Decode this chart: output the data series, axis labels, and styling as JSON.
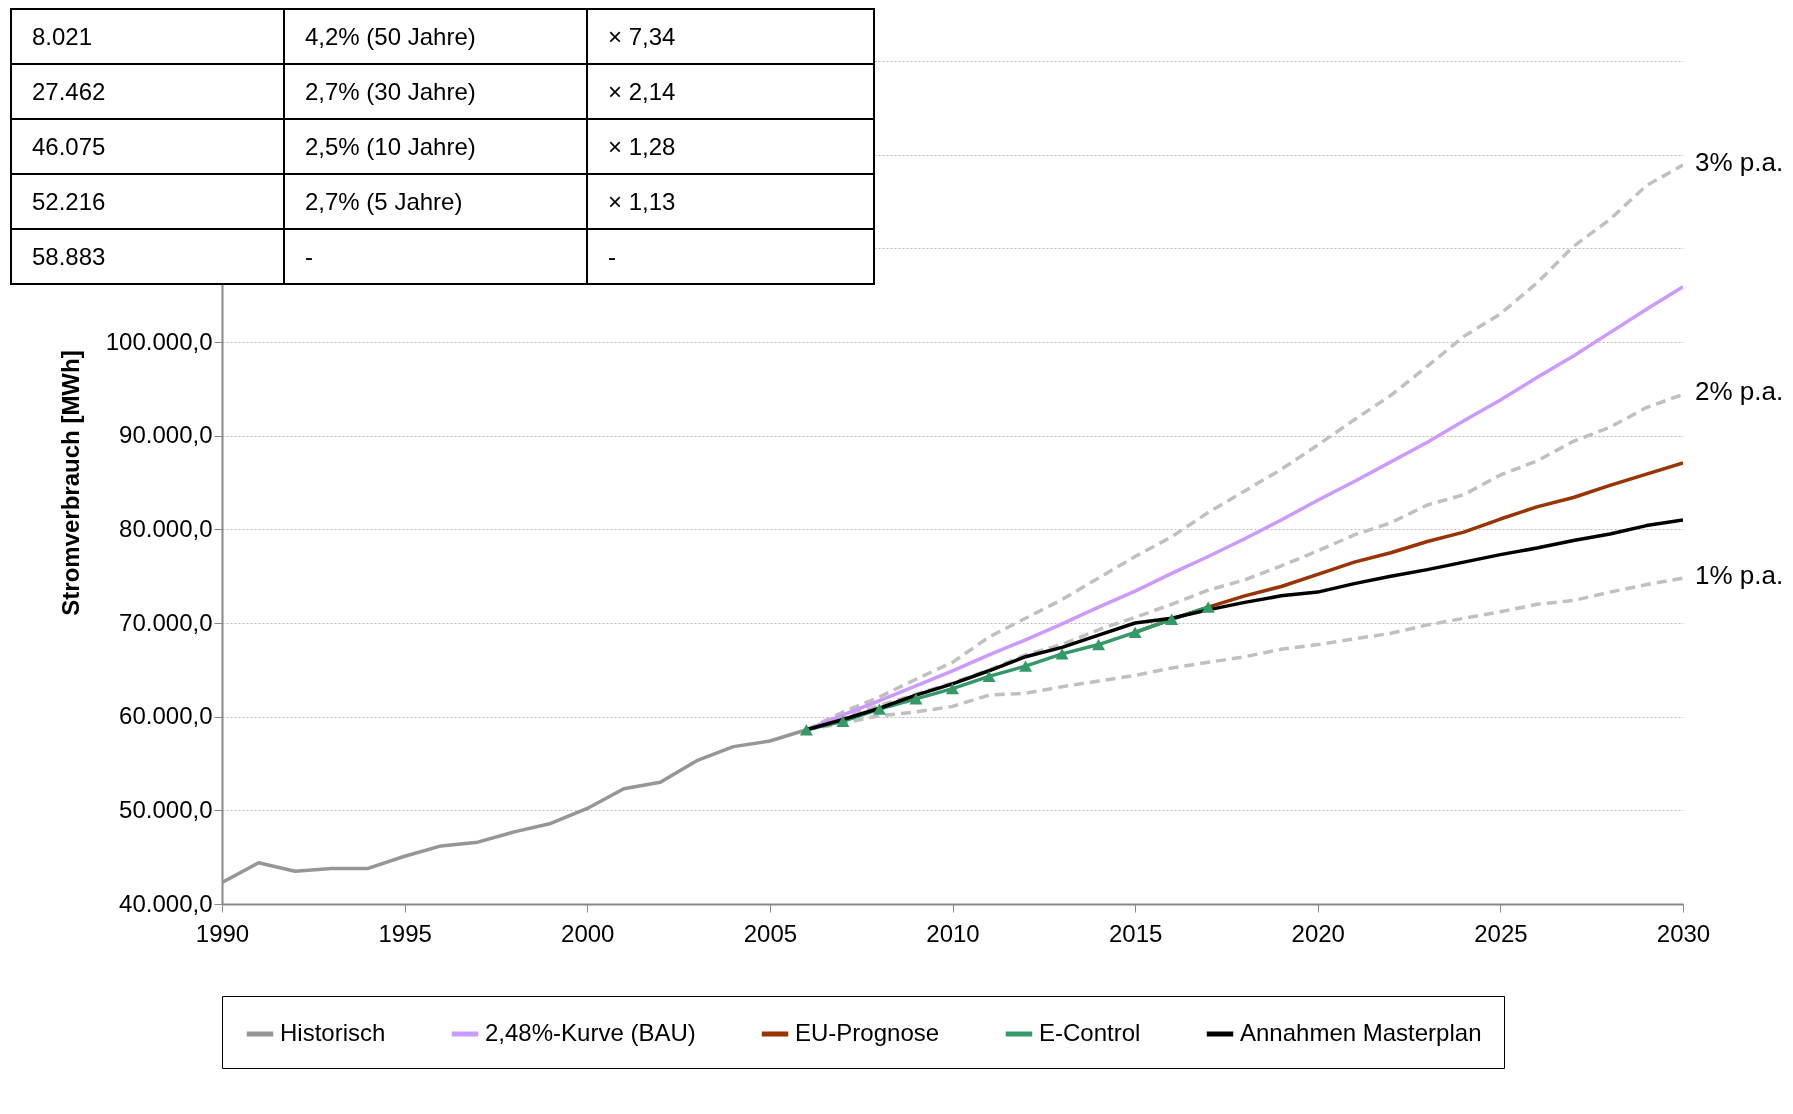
{
  "chart_data": {
    "type": "line",
    "ylabel": "Stromverbrauch [MWh]",
    "xlim": [
      1990,
      2030
    ],
    "xticks": [
      1990,
      1995,
      2000,
      2005,
      2010,
      2015,
      2020,
      2025,
      2030
    ],
    "ylim": [
      40000,
      130000
    ],
    "yticks": [
      {
        "value": 40000,
        "label": "40.000,0"
      },
      {
        "value": 50000,
        "label": "50.000,0"
      },
      {
        "value": 60000,
        "label": "60.000,0"
      },
      {
        "value": 70000,
        "label": "70.000,0"
      },
      {
        "value": 80000,
        "label": "80.000,0"
      },
      {
        "value": 90000,
        "label": "90.000,0"
      },
      {
        "value": 100000,
        "label": "100.000,0"
      },
      {
        "value": 110000,
        "label": null
      },
      {
        "value": 120000,
        "label": null
      },
      {
        "value": 130000,
        "label": null
      }
    ],
    "grid": "y",
    "legend": "bottom",
    "annotations": [
      "8.021",
      "4,2% (50 Jahre)",
      "× 7,34",
      "27.462",
      "2,7% (30 Jahre)",
      "× 2,14",
      "46.075",
      "2,5% (10 Jahre)",
      "× 1,28",
      "52.216",
      "2,7% (5 Jahre)",
      "× 1,13",
      "58.883",
      "-",
      "-"
    ],
    "series": [
      {
        "name": "3% p.a.",
        "color": "#c0c0c0",
        "line_style": "dashed",
        "x": [
          2006,
          2007,
          2008,
          2009,
          2010,
          2011,
          2012,
          2013,
          2014,
          2015,
          2016,
          2017,
          2018,
          2019,
          2020,
          2021,
          2022,
          2023,
          2024,
          2025,
          2026,
          2027,
          2028,
          2029,
          2030
        ],
        "values": [
          58600,
          60500,
          62100,
          64000,
          65800,
          68500,
          70500,
          72500,
          74800,
          77100,
          79200,
          81800,
          84100,
          86400,
          89000,
          91700,
          94300,
          97400,
          100600,
          103000,
          106300,
          110200,
          113100,
          116700,
          118900
        ]
      },
      {
        "name": "2% p.a.",
        "color": "#c0c0c0",
        "line_style": "dashed",
        "x": [
          2006,
          2007,
          2008,
          2009,
          2010,
          2011,
          2012,
          2013,
          2014,
          2015,
          2016,
          2017,
          2018,
          2019,
          2020,
          2021,
          2022,
          2023,
          2024,
          2025,
          2026,
          2027,
          2028,
          2029,
          2030
        ],
        "values": [
          58600,
          60000,
          61200,
          62400,
          63600,
          65000,
          66600,
          67700,
          69300,
          70600,
          72000,
          73500,
          74600,
          76100,
          77700,
          79400,
          80700,
          82600,
          83700,
          85800,
          87300,
          89400,
          90900,
          93000,
          94400
        ]
      },
      {
        "name": "1% p.a.",
        "color": "#c0c0c0",
        "line_style": "dashed",
        "x": [
          2006,
          2007,
          2008,
          2009,
          2010,
          2011,
          2012,
          2013,
          2014,
          2015,
          2016,
          2017,
          2018,
          2019,
          2020,
          2021,
          2022,
          2023,
          2024,
          2025,
          2026,
          2027,
          2028,
          2029,
          2030
        ],
        "values": [
          58600,
          59300,
          60100,
          60500,
          61100,
          62300,
          62500,
          63200,
          63800,
          64400,
          65200,
          65800,
          66400,
          67200,
          67700,
          68300,
          68900,
          69800,
          70500,
          71200,
          72000,
          72400,
          73300,
          74100,
          74800
        ]
      },
      {
        "name": "Historisch",
        "color": "#969696",
        "x": [
          1990,
          1991,
          1992,
          1993,
          1994,
          1995,
          1996,
          1997,
          1998,
          1999,
          2000,
          2001,
          2002,
          2003,
          2004,
          2005,
          2006
        ],
        "values": [
          42300,
          44400,
          43500,
          43800,
          43800,
          45100,
          46200,
          46600,
          47700,
          48600,
          50200,
          52300,
          53000,
          55300,
          56800,
          57400,
          58600
        ]
      },
      {
        "name": "2,48%-Kurve (BAU)",
        "color": "#cc99ff",
        "x": [
          2006,
          2007,
          2008,
          2009,
          2010,
          2011,
          2012,
          2013,
          2014,
          2015,
          2016,
          2017,
          2018,
          2019,
          2020,
          2021,
          2022,
          2023,
          2024,
          2025,
          2026,
          2027,
          2028,
          2029,
          2030
        ],
        "values": [
          58600,
          60200,
          61700,
          63300,
          64900,
          66600,
          68200,
          69900,
          71700,
          73400,
          75300,
          77100,
          79000,
          81000,
          83100,
          85100,
          87200,
          89300,
          91600,
          93800,
          96200,
          98500,
          101000,
          103500,
          105900
        ]
      },
      {
        "name": "EU-Prognose",
        "color": "#993300",
        "x": [
          2015,
          2016,
          2017,
          2018,
          2019,
          2020,
          2021,
          2022,
          2023,
          2024,
          2025,
          2026,
          2027,
          2028,
          2029,
          2030
        ],
        "values": [
          69000,
          70400,
          71700,
          72900,
          73900,
          75200,
          76500,
          77500,
          78700,
          79700,
          81100,
          82400,
          83400,
          84700,
          85900,
          87100
        ]
      },
      {
        "name": "E-Control",
        "color": "#339966",
        "marker": "triangle",
        "x": [
          2006,
          2007,
          2008,
          2009,
          2010,
          2011,
          2012,
          2013,
          2014,
          2015,
          2016,
          2017
        ],
        "values": [
          58600,
          59500,
          60800,
          61900,
          63000,
          64300,
          65400,
          66700,
          67700,
          69000,
          70400,
          71700
        ]
      },
      {
        "name": "Annahmen Masterplan",
        "color": "#000000",
        "x": [
          2006,
          2007,
          2008,
          2009,
          2010,
          2011,
          2012,
          2013,
          2014,
          2015,
          2016,
          2017,
          2018,
          2019,
          2020,
          2021,
          2022,
          2023,
          2024,
          2025,
          2026,
          2027,
          2028,
          2029,
          2030
        ],
        "values": [
          58600,
          59700,
          60900,
          62300,
          63500,
          64900,
          66400,
          67400,
          68700,
          70000,
          70500,
          71400,
          72200,
          72900,
          73300,
          74200,
          75000,
          75700,
          76500,
          77300,
          78000,
          78800,
          79500,
          80400,
          81000
        ]
      }
    ]
  }
}
